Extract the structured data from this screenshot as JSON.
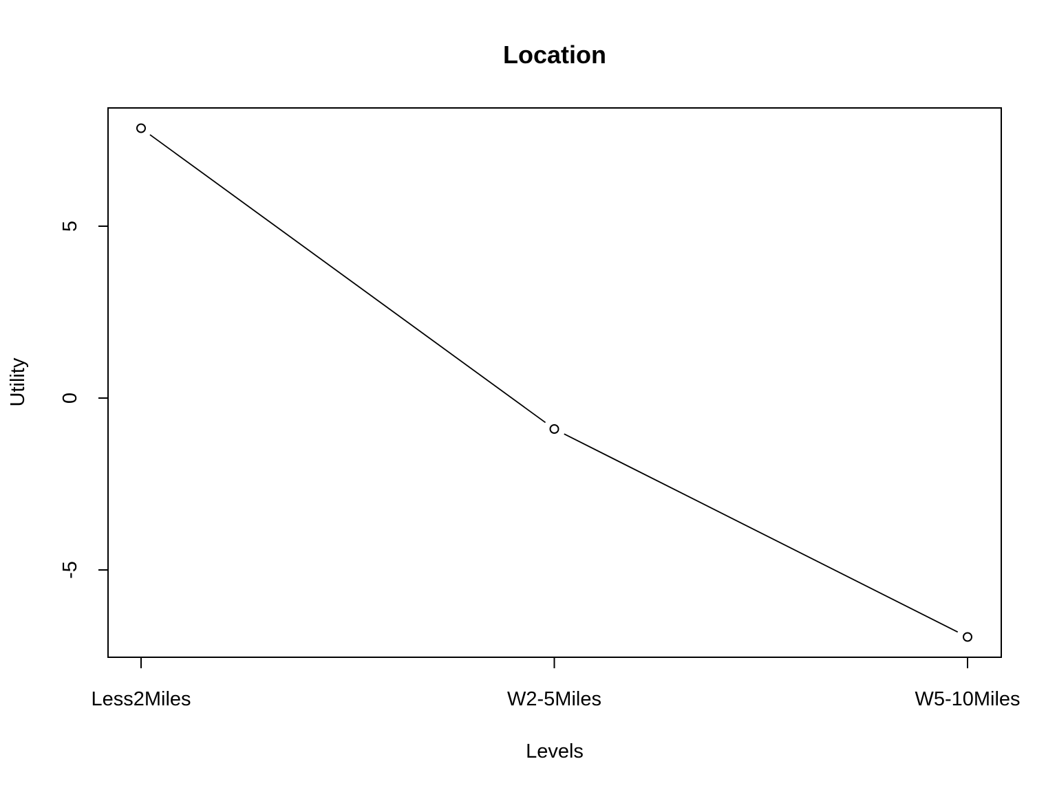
{
  "chart_data": {
    "type": "line",
    "title": "Location",
    "xlabel": "Levels",
    "ylabel": "Utility",
    "categories": [
      "Less2Miles",
      "W2-5Miles",
      "W5-10Miles"
    ],
    "values": [
      7.85,
      -0.9,
      -6.95
    ],
    "ylim": [
      -7.5,
      8.5
    ],
    "yticks": [
      -5,
      0,
      5
    ],
    "ytick_labels": [
      "-5",
      "0",
      "5"
    ],
    "grid": false,
    "markers": "open-circle",
    "line_color": "#000000"
  }
}
